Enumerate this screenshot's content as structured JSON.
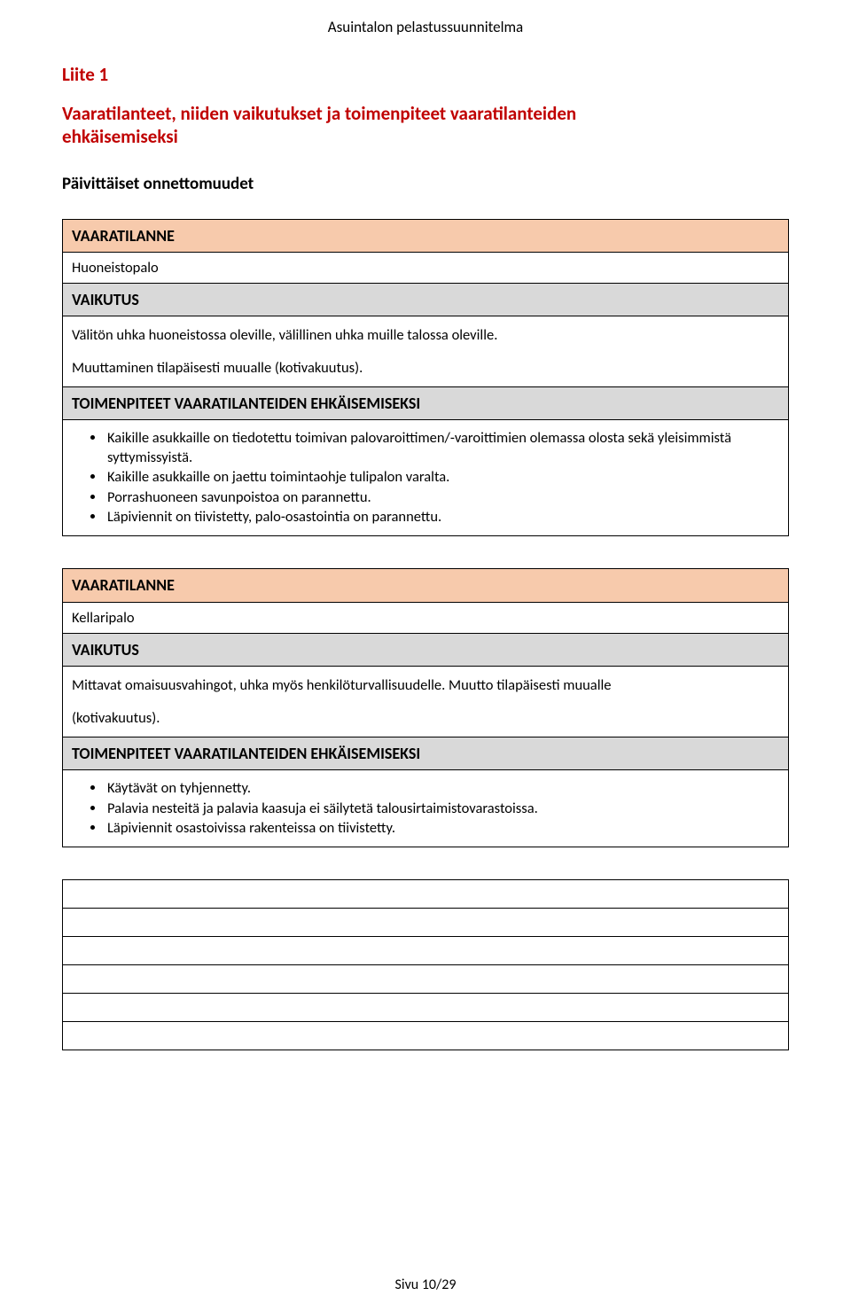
{
  "colors": {
    "accent_red": "#c00000",
    "header_orange": "#f7caac",
    "header_gray": "#d9d9d9",
    "border": "#000000",
    "background": "#ffffff",
    "text": "#000000"
  },
  "document_header": "Asuintalon pelastussuunnitelma",
  "liite_label": "Liite 1",
  "main_title_lines": [
    "Vaaratilanteet, niiden vaikutukset ja toimenpiteet vaaratilanteiden",
    "ehkäisemiseksi"
  ],
  "sub_title": "Päivittäiset onnettomuudet",
  "sections": [
    {
      "vaaratilanne_header": "VAARATILANNE",
      "vaaratilanne_value": "Huoneistopalo",
      "vaikutus_header": "VAIKUTUS",
      "vaikutus_paragraphs": [
        "Välitön uhka huoneistossa oleville, välillinen uhka muille talossa oleville.",
        "Muuttaminen tilapäisesti muualle (kotivakuutus)."
      ],
      "toimenpiteet_header": "TOIMENPITEET VAARATILANTEIDEN EHKÄISEMISEKSI",
      "toimenpiteet_bullets": [
        "Kaikille asukkaille on tiedotettu toimivan palovaroittimen/-varoittimien olemassa olosta sekä yleisimmistä syttymissyistä.",
        "Kaikille asukkaille on jaettu toimintaohje tulipalon varalta.",
        "Porrashuoneen savunpoistoa on parannettu.",
        "Läpiviennit on tiivistetty, palo-osastointia on parannettu."
      ]
    },
    {
      "vaaratilanne_header": "VAARATILANNE",
      "vaaratilanne_value": "Kellaripalo",
      "vaikutus_header": "VAIKUTUS",
      "vaikutus_paragraphs": [
        "Mittavat omaisuusvahingot, uhka myös henkilöturvallisuudelle. Muutto tilapäisesti muualle",
        "(kotivakuutus)."
      ],
      "toimenpiteet_header": "TOIMENPITEET VAARATILANTEIDEN EHKÄISEMISEKSI",
      "toimenpiteet_bullets": [
        "Käytävät on tyhjennetty.",
        "Palavia nesteitä ja palavia kaasuja ei säilytetä talousirtaimistovarastoissa.",
        "Läpiviennit osastoivissa rakenteissa on tiivistetty."
      ]
    }
  ],
  "empty_table_rows": 6,
  "footer": "Sivu 10/29"
}
